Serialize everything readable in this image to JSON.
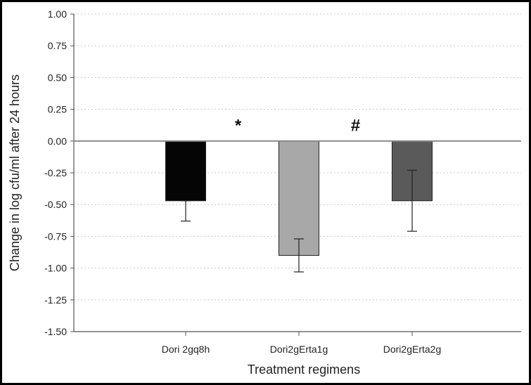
{
  "chart_data": {
    "type": "bar",
    "title": "",
    "xlabel": "Treatment regimens",
    "ylabel": "Change in log cfu/ml after 24 hours",
    "ylim": [
      -1.5,
      1.0
    ],
    "yticks": [
      "1.00",
      "0.75",
      "0.50",
      "0.25",
      "0.00",
      "-0.25",
      "-0.50",
      "-0.75",
      "-1.00",
      "-1.25",
      "-1.50"
    ],
    "tick_values": [
      1.0,
      0.75,
      0.5,
      0.25,
      0.0,
      -0.25,
      -0.5,
      -0.75,
      -1.0,
      -1.25,
      -1.5
    ],
    "categories": [
      "Dori 2gq8h",
      "Dori2gErta1g",
      "Dori2gErta2g"
    ],
    "values": [
      -0.47,
      -0.9,
      -0.47
    ],
    "error_low": [
      -0.63,
      -1.03,
      -0.71
    ],
    "error_high": [
      -0.47,
      -0.77,
      -0.23
    ],
    "bar_colors": [
      "#050505",
      "#a8a8a8",
      "#5a5a5a"
    ],
    "grid": "horizontal-dotted",
    "annotations": [
      {
        "text": "*",
        "x": 1.5,
        "y": 0.1
      },
      {
        "text": "#",
        "x": 2.5,
        "y": 0.1
      }
    ]
  }
}
